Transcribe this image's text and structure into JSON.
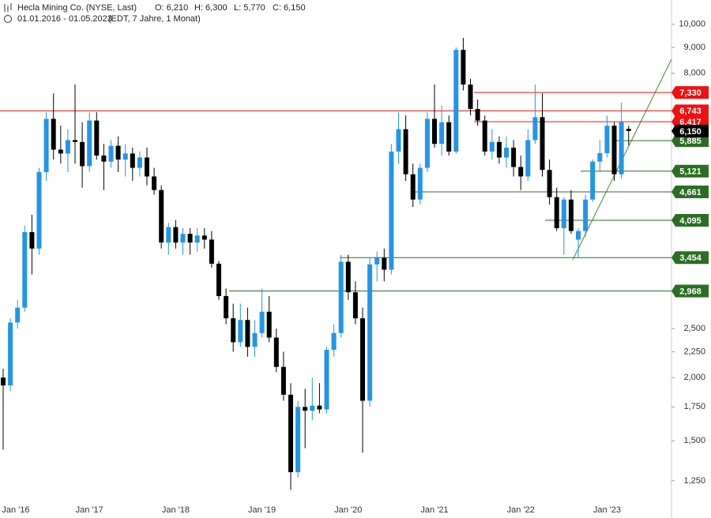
{
  "header": {
    "title": "Hecla Mining Co. (NYSE, Last)",
    "open": "O: 6,210",
    "high": "H: 6,300",
    "low": "L: 5,770",
    "close": "C: 6,150",
    "range": "01.01.2016 - 01.05.2023",
    "info": "(EDT, 7 Jahre, 1 Monat)"
  },
  "chart_data": {
    "type": "candlestick",
    "log_scale": true,
    "up_color": "#2196e8",
    "down_color": "#000000",
    "categories": [
      "Jan '16",
      null,
      null,
      null,
      null,
      null,
      null,
      null,
      null,
      null,
      null,
      null,
      "Jan '17",
      null,
      null,
      null,
      null,
      null,
      null,
      null,
      null,
      null,
      null,
      null,
      "Jan '18",
      null,
      null,
      null,
      null,
      null,
      null,
      null,
      null,
      null,
      null,
      null,
      "Jan '19",
      null,
      null,
      null,
      null,
      null,
      null,
      null,
      null,
      null,
      null,
      null,
      "Jan '20",
      null,
      null,
      null,
      null,
      null,
      null,
      null,
      null,
      null,
      null,
      null,
      "Jan '21",
      null,
      null,
      null,
      null,
      null,
      null,
      null,
      null,
      null,
      null,
      null,
      "Jan '22",
      null,
      null,
      null,
      null,
      null,
      null,
      null,
      null,
      null,
      null,
      null,
      "Jan '23",
      null,
      null,
      null
    ],
    "ohlc": [
      [
        2.0,
        2.08,
        1.44,
        1.93
      ],
      [
        1.93,
        2.62,
        1.88,
        2.57
      ],
      [
        2.57,
        2.85,
        2.5,
        2.75
      ],
      [
        2.75,
        4.0,
        2.7,
        3.88
      ],
      [
        3.88,
        4.2,
        3.2,
        3.6
      ],
      [
        3.6,
        5.2,
        3.5,
        5.1
      ],
      [
        5.1,
        6.7,
        4.9,
        6.5
      ],
      [
        6.5,
        7.3,
        5.4,
        5.65
      ],
      [
        5.65,
        6.3,
        5.3,
        5.55
      ],
      [
        5.55,
        6.2,
        5.1,
        5.9
      ],
      [
        5.9,
        7.6,
        5.3,
        5.85
      ],
      [
        5.85,
        6.4,
        4.75,
        5.24
      ],
      [
        5.24,
        6.7,
        5.1,
        6.45
      ],
      [
        6.45,
        6.7,
        5.4,
        5.5
      ],
      [
        5.5,
        5.8,
        4.7,
        5.35
      ],
      [
        5.35,
        5.9,
        5.2,
        5.75
      ],
      [
        5.75,
        6.0,
        5.1,
        5.4
      ],
      [
        5.4,
        5.8,
        5.0,
        5.55
      ],
      [
        5.55,
        5.7,
        4.9,
        5.2
      ],
      [
        5.2,
        5.6,
        5.0,
        5.45
      ],
      [
        5.45,
        5.7,
        4.8,
        5.0
      ],
      [
        5.0,
        5.2,
        4.6,
        4.7
      ],
      [
        4.7,
        4.8,
        3.6,
        3.7
      ],
      [
        3.7,
        4.05,
        3.5,
        3.97
      ],
      [
        3.97,
        4.1,
        3.6,
        3.7
      ],
      [
        3.7,
        3.95,
        3.5,
        3.85
      ],
      [
        3.85,
        3.95,
        3.5,
        3.7
      ],
      [
        3.7,
        3.95,
        3.55,
        3.82
      ],
      [
        3.82,
        3.95,
        3.6,
        3.75
      ],
      [
        3.75,
        3.9,
        3.3,
        3.36
      ],
      [
        3.36,
        3.4,
        2.85,
        2.9
      ],
      [
        2.9,
        3.0,
        2.55,
        2.62
      ],
      [
        2.62,
        2.8,
        2.25,
        2.35
      ],
      [
        2.35,
        2.8,
        2.3,
        2.6
      ],
      [
        2.6,
        2.75,
        2.2,
        2.3
      ],
      [
        2.3,
        2.6,
        2.2,
        2.45
      ],
      [
        2.45,
        3.0,
        2.4,
        2.7
      ],
      [
        2.7,
        2.9,
        2.35,
        2.4
      ],
      [
        2.4,
        2.5,
        2.05,
        2.1
      ],
      [
        2.1,
        2.25,
        1.8,
        1.85
      ],
      [
        1.85,
        1.95,
        1.2,
        1.3
      ],
      [
        1.3,
        1.8,
        1.27,
        1.75
      ],
      [
        1.75,
        1.9,
        1.45,
        1.72
      ],
      [
        1.72,
        2.0,
        1.65,
        1.76
      ],
      [
        1.76,
        1.95,
        1.7,
        1.73
      ],
      [
        1.73,
        2.3,
        1.7,
        2.27
      ],
      [
        2.27,
        2.55,
        2.2,
        2.45
      ],
      [
        2.45,
        3.5,
        2.4,
        3.39
      ],
      [
        3.39,
        3.5,
        2.85,
        2.95
      ],
      [
        2.95,
        3.1,
        2.55,
        2.62
      ],
      [
        2.62,
        2.75,
        1.42,
        1.8
      ],
      [
        1.8,
        3.45,
        1.75,
        3.35
      ],
      [
        3.35,
        3.55,
        3.1,
        3.45
      ],
      [
        3.45,
        3.6,
        3.1,
        3.27
      ],
      [
        3.27,
        5.8,
        3.2,
        5.6
      ],
      [
        5.6,
        6.7,
        5.3,
        6.2
      ],
      [
        6.2,
        6.6,
        4.9,
        5.05
      ],
      [
        5.05,
        5.3,
        4.35,
        4.5
      ],
      [
        4.5,
        5.3,
        4.4,
        5.2
      ],
      [
        5.2,
        6.7,
        5.1,
        6.5
      ],
      [
        6.5,
        7.6,
        5.7,
        5.8
      ],
      [
        5.8,
        6.9,
        5.5,
        6.4
      ],
      [
        6.4,
        6.6,
        5.5,
        5.6
      ],
      [
        5.6,
        9.0,
        5.55,
        8.9
      ],
      [
        8.9,
        9.4,
        7.4,
        7.6
      ],
      [
        7.6,
        7.8,
        6.6,
        6.8
      ],
      [
        6.8,
        7.1,
        6.3,
        6.45
      ],
      [
        6.45,
        6.6,
        5.5,
        5.6
      ],
      [
        5.6,
        6.2,
        5.4,
        5.85
      ],
      [
        5.85,
        6.0,
        5.3,
        5.45
      ],
      [
        5.45,
        6.0,
        5.2,
        5.7
      ],
      [
        5.7,
        5.9,
        5.0,
        5.22
      ],
      [
        5.22,
        5.5,
        4.7,
        5.0
      ],
      [
        5.0,
        6.2,
        4.9,
        5.9
      ],
      [
        5.9,
        7.6,
        5.8,
        6.55
      ],
      [
        6.55,
        7.3,
        5.0,
        5.15
      ],
      [
        5.15,
        5.4,
        4.4,
        4.55
      ],
      [
        4.55,
        4.75,
        3.9,
        3.95
      ],
      [
        3.95,
        4.55,
        3.5,
        4.5
      ],
      [
        4.5,
        4.7,
        3.85,
        3.9
      ],
      [
        3.75,
        3.95,
        3.45,
        3.9
      ],
      [
        3.9,
        4.6,
        3.8,
        4.5
      ],
      [
        4.5,
        5.4,
        4.45,
        5.35
      ],
      [
        5.35,
        5.9,
        5.1,
        5.56
      ],
      [
        5.56,
        6.6,
        5.45,
        6.3
      ],
      [
        6.3,
        6.4,
        4.9,
        5.05
      ],
      [
        5.05,
        7.0,
        4.95,
        6.4
      ],
      [
        6.21,
        6.3,
        5.77,
        6.15
      ]
    ],
    "ylim": [
      1.055,
      11.17
    ],
    "yticks": [
      {
        "value": 10,
        "label": "10,000"
      },
      {
        "value": 9,
        "label": "9,000"
      },
      {
        "value": 8,
        "label": "8,000"
      },
      {
        "value": 2.5,
        "label": "2,500"
      },
      {
        "value": 2.25,
        "label": "2,250"
      },
      {
        "value": 2,
        "label": "2,000"
      },
      {
        "value": 1.75,
        "label": "1,750"
      },
      {
        "value": 1.5,
        "label": "1,500"
      },
      {
        "value": 1.25,
        "label": "1,250"
      }
    ],
    "levels": [
      {
        "value": 7.33,
        "label": "7,330",
        "color": "#f01010"
      },
      {
        "value": 6.743,
        "label": "6,743",
        "color": "#f01010"
      },
      {
        "value": 6.417,
        "label": "6,417",
        "color": "#f01010"
      },
      {
        "value": 5.885,
        "label": "5,885",
        "color": "#2a6e22"
      },
      {
        "value": 5.121,
        "label": "5,121",
        "color": "#2a6e22"
      },
      {
        "value": 4.661,
        "label": "4,661",
        "color": "#2a6e22"
      },
      {
        "value": 4.095,
        "label": "4,095",
        "color": "#2a6e22"
      },
      {
        "value": 3.454,
        "label": "3,454",
        "color": "#2a6e22"
      },
      {
        "value": 2.968,
        "label": "2,968",
        "color": "#2a6e22"
      }
    ],
    "last_price": {
      "value": 6.15,
      "label": "6,150",
      "color": "#000000"
    }
  }
}
